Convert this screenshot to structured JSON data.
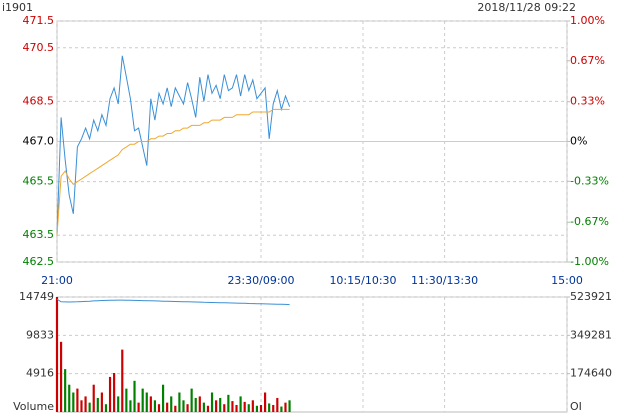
{
  "chart_data": [
    {
      "type": "line",
      "title": "i1901",
      "subtitle": "2018/11/28 09:22",
      "x": [
        0,
        3,
        6,
        9,
        12,
        15,
        18,
        21,
        24,
        27,
        30,
        33,
        36,
        39,
        42,
        45,
        48,
        51,
        54,
        57,
        60,
        63,
        66,
        69,
        72,
        75,
        78,
        81,
        84,
        87,
        90,
        93,
        96,
        99,
        102,
        105,
        108,
        111,
        114,
        117,
        120,
        123,
        126,
        129,
        132,
        135,
        138,
        141,
        144,
        147,
        150,
        153,
        156,
        159,
        162,
        165,
        168,
        171
      ],
      "xlim": [
        0,
        375
      ],
      "xticks": [
        {
          "value": 0,
          "label": "21:00"
        },
        {
          "value": 150,
          "label": "23:30/09:00"
        },
        {
          "value": 225,
          "label": "10:15/10:30"
        },
        {
          "value": 285,
          "label": "11:30/13:30"
        },
        {
          "value": 375,
          "label": "15:00"
        }
      ],
      "ylim": [
        462.5,
        471.5
      ],
      "yticks": [
        462.5,
        463.5,
        465.5,
        {
          "value": 467,
          "label": "467.0"
        },
        468.5,
        470.5,
        471.5
      ],
      "y2lim": [
        -1,
        1
      ],
      "y2ticks": [
        {
          "value": -1,
          "label": "-1.00%"
        },
        {
          "value": -0.67,
          "label": "-0.67%"
        },
        {
          "value": -0.33,
          "label": "-0.33%"
        },
        {
          "value": 0,
          "label": "0%"
        },
        {
          "value": 0.33,
          "label": "0.33%"
        },
        {
          "value": 0.67,
          "label": "0.67%"
        },
        {
          "value": 1,
          "label": "1.00%"
        }
      ],
      "grid": true,
      "up_color": "#cc0000",
      "down_color": "#008000",
      "series": [
        {
          "color": "#3a8fd6",
          "values": [
            463.5,
            467.9,
            466.3,
            465.0,
            464.3,
            466.8,
            467.1,
            467.5,
            467.1,
            467.8,
            467.4,
            468.0,
            467.6,
            468.6,
            469.0,
            468.4,
            470.2,
            469.4,
            468.6,
            467.4,
            467.5,
            466.8,
            466.1,
            468.6,
            467.8,
            468.8,
            468.4,
            469.0,
            468.3,
            469.0,
            468.7,
            468.4,
            469.2,
            468.6,
            467.9,
            469.4,
            468.5,
            469.5,
            468.8,
            469.1,
            468.6,
            469.5,
            468.9,
            469.0,
            469.5,
            468.7,
            469.5,
            468.9,
            469.3,
            468.6,
            468.8,
            469.0,
            467.1,
            468.4,
            468.9,
            468.2,
            468.7,
            468.3
          ]
        },
        {
          "color": "#f0a830",
          "values": [
            463.5,
            465.7,
            465.9,
            465.6,
            465.4,
            465.5,
            465.6,
            465.7,
            465.8,
            465.9,
            466.0,
            466.1,
            466.2,
            466.3,
            466.4,
            466.5,
            466.7,
            466.8,
            466.9,
            466.9,
            467.0,
            467.0,
            467.0,
            467.1,
            467.1,
            467.2,
            467.2,
            467.3,
            467.3,
            467.4,
            467.4,
            467.5,
            467.5,
            467.6,
            467.6,
            467.6,
            467.7,
            467.7,
            467.8,
            467.8,
            467.8,
            467.9,
            467.9,
            467.9,
            468.0,
            468.0,
            468.0,
            468.0,
            468.1,
            468.1,
            468.1,
            468.1,
            468.1,
            468.2,
            468.2,
            468.2,
            468.2,
            468.2
          ]
        }
      ]
    },
    {
      "type": "bar",
      "y_label": "Volume",
      "y2_label": "OI",
      "ylim": [
        0,
        14749
      ],
      "yticks": [
        4916,
        9833,
        14749
      ],
      "y2lim": [
        0,
        523921
      ],
      "y2ticks": [
        174640,
        349281,
        523921
      ],
      "grid": true,
      "series": [
        {
          "values": [
            14749,
            9000,
            5500,
            3500,
            2500,
            3000,
            1500,
            2000,
            1200,
            3500,
            1800,
            2500,
            1000,
            4500,
            5000,
            2000,
            8000,
            3000,
            1500,
            4000,
            1200,
            3000,
            2500,
            2000,
            1500,
            1000,
            3500,
            1200,
            2000,
            800,
            2500,
            1500,
            1000,
            3000,
            1800,
            2000,
            1200,
            800,
            2500,
            1500,
            1800,
            1000,
            2200,
            1400,
            900,
            2000,
            1300,
            1000,
            1500,
            800,
            900,
            2500,
            1100,
            900,
            1800,
            700,
            1200,
            1500
          ]
        },
        {
          "axis": "y2",
          "color": "#3a8fd6",
          "values": [
            514000,
            502000,
            501500,
            501000,
            501500,
            502000,
            503000,
            504000,
            505000,
            506000,
            507000,
            508000,
            508500,
            509000,
            509500,
            510000,
            510000,
            509500,
            509000,
            508500,
            508000,
            507500,
            507000,
            506500,
            506000,
            505500,
            505000,
            504500,
            504000,
            503500,
            503000,
            502500,
            502000,
            501500,
            501000,
            500500,
            500000,
            499500,
            499000,
            498500,
            498000,
            497500,
            497000,
            496500,
            496000,
            495500,
            495000,
            494500,
            494000,
            493500,
            493000,
            492500,
            492000,
            491500,
            491000,
            490500,
            490000,
            489500
          ]
        }
      ]
    }
  ]
}
